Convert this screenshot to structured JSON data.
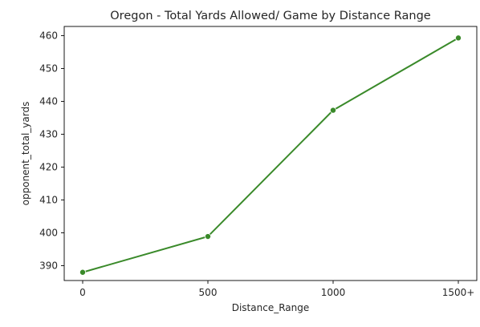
{
  "chart_data": {
    "type": "line",
    "title": "Oregon - Total Yards Allowed/ Game by Distance Range",
    "xlabel": "Distance_Range",
    "ylabel": "opponent_total_yards",
    "categories": [
      "0",
      "500",
      "1000",
      "1500+"
    ],
    "series": [
      {
        "values": [
          388.0,
          398.9,
          437.3,
          459.3
        ],
        "color": "#3a8a2a"
      }
    ],
    "yticks": [
      390,
      400,
      410,
      420,
      430,
      440,
      450,
      460
    ],
    "ylim": [
      385.5,
      462.8
    ],
    "grid": false,
    "legend": "none"
  }
}
